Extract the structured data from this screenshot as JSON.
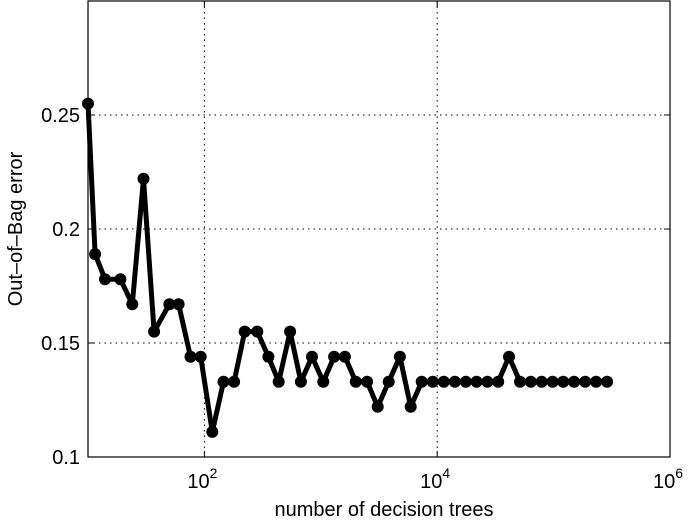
{
  "chart_data": {
    "type": "line",
    "title": "",
    "xlabel": "number of decision trees",
    "ylabel": "Out–of–Bag error",
    "x_scale": "log",
    "xlim": [
      10,
      1000000
    ],
    "ylim": [
      0.1,
      0.3
    ],
    "x_ticks": [
      {
        "value": 100,
        "base": "10",
        "exp": "2"
      },
      {
        "value": 10000,
        "base": "10",
        "exp": "4"
      },
      {
        "value": 1000000,
        "base": "10",
        "exp": "6"
      }
    ],
    "y_ticks": [
      {
        "value": 0.1,
        "label": "0.1"
      },
      {
        "value": 0.15,
        "label": "0.15"
      },
      {
        "value": 0.2,
        "label": "0.2"
      },
      {
        "value": 0.25,
        "label": "0.25"
      }
    ],
    "grid": true,
    "line_color": "#000000",
    "series": [
      {
        "x": [
          10,
          11.5,
          14,
          19,
          24,
          30,
          37,
          50,
          60,
          76,
          93,
          117,
          146,
          180,
          222,
          285,
          355,
          435,
          545,
          675,
          840,
          1050,
          1300,
          1610,
          2000,
          2500,
          3080,
          3830,
          4780,
          5920,
          7360,
          9160,
          11400,
          14200,
          17600,
          21800,
          27000,
          33400,
          41400,
          51400,
          63700,
          79000,
          98000,
          121000,
          150000,
          187000,
          232000,
          288000
        ],
        "y": [
          0.255,
          0.189,
          0.178,
          0.178,
          0.167,
          0.222,
          0.155,
          0.167,
          0.167,
          0.144,
          0.144,
          0.111,
          0.133,
          0.133,
          0.155,
          0.155,
          0.144,
          0.133,
          0.155,
          0.133,
          0.144,
          0.133,
          0.144,
          0.144,
          0.133,
          0.133,
          0.122,
          0.133,
          0.144,
          0.122,
          0.133,
          0.133,
          0.133,
          0.133,
          0.133,
          0.133,
          0.133,
          0.133,
          0.144,
          0.133,
          0.133,
          0.133,
          0.133,
          0.133,
          0.133,
          0.133,
          0.133,
          0.133
        ]
      }
    ]
  }
}
